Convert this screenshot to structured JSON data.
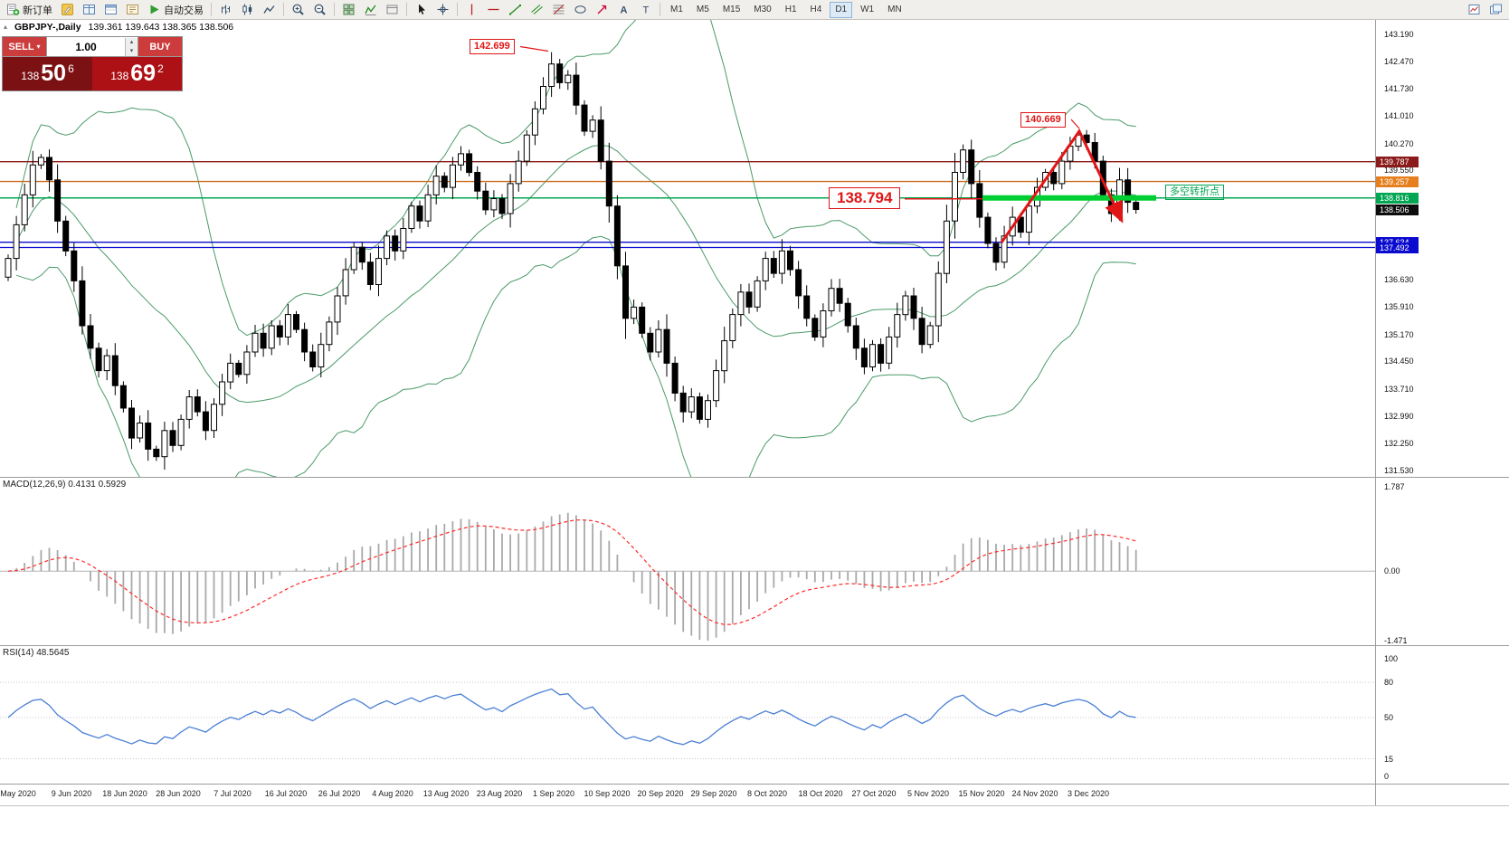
{
  "toolbar": {
    "new_order_label": "新订单",
    "autotrading_label": "自动交易",
    "timeframes": [
      "M1",
      "M5",
      "M15",
      "M30",
      "H1",
      "H4",
      "D1",
      "W1",
      "MN"
    ],
    "active_timeframe": "D1",
    "items": [
      {
        "type": "button",
        "name": "new-order-button",
        "icon": "new-order",
        "label": "新订单"
      },
      {
        "type": "icon",
        "name": "metaeditor-icon",
        "icon": "metaeditor"
      },
      {
        "type": "icon",
        "name": "market-watch-icon",
        "icon": "market-watch"
      },
      {
        "type": "icon",
        "name": "data-window-icon",
        "icon": "data-window"
      },
      {
        "type": "icon",
        "name": "navigator-icon",
        "icon": "navigator"
      },
      {
        "type": "button",
        "name": "autotrading-button",
        "icon": "play",
        "label": "自动交易"
      },
      {
        "type": "sep"
      },
      {
        "type": "icon",
        "name": "bar-chart-icon",
        "icon": "bars"
      },
      {
        "type": "icon",
        "name": "candlestick-chart-icon",
        "icon": "candles"
      },
      {
        "type": "icon",
        "name": "line-chart-icon",
        "icon": "linechart"
      },
      {
        "type": "sep"
      },
      {
        "type": "icon",
        "name": "zoom-in-icon",
        "icon": "zoom-in"
      },
      {
        "type": "icon",
        "name": "zoom-out-icon",
        "icon": "zoom-out"
      },
      {
        "type": "sep"
      },
      {
        "type": "icon",
        "name": "tile-windows-icon",
        "icon": "tile"
      },
      {
        "type": "icon",
        "name": "indicators-icon",
        "icon": "indicators"
      },
      {
        "type": "icon",
        "name": "templates-icon",
        "icon": "templates"
      },
      {
        "type": "sep"
      },
      {
        "type": "icon",
        "name": "cursor-icon",
        "icon": "cursor"
      },
      {
        "type": "icon",
        "name": "crosshair-icon",
        "icon": "crosshair"
      },
      {
        "type": "sep"
      },
      {
        "type": "icon",
        "name": "vertical-line-icon",
        "icon": "vline"
      },
      {
        "type": "icon",
        "name": "horizontal-line-icon",
        "icon": "hline"
      },
      {
        "type": "icon",
        "name": "trendline-icon",
        "icon": "trend"
      },
      {
        "type": "icon",
        "name": "equidistant-channel-icon",
        "icon": "channel"
      },
      {
        "type": "icon",
        "name": "fibonacci-icon",
        "icon": "fibo"
      },
      {
        "type": "icon",
        "name": "shapes-icon",
        "icon": "shapes"
      },
      {
        "type": "icon",
        "name": "arrows-icon",
        "icon": "arrowobj"
      },
      {
        "type": "icon",
        "name": "text-icon",
        "icon": "textA"
      },
      {
        "type": "icon",
        "name": "text-label-icon",
        "icon": "textT"
      },
      {
        "type": "sep"
      },
      {
        "type": "timeframes"
      },
      {
        "type": "spacer"
      },
      {
        "type": "icon",
        "name": "new-chart-icon",
        "icon": "newchart"
      },
      {
        "type": "icon",
        "name": "profile-charts-icon",
        "icon": "chartlist"
      }
    ]
  },
  "quote_header": {
    "symbol_period": "GBPJPY-,Daily",
    "ohlc": "139.361 139.643 138.365 138.506"
  },
  "trade_panel": {
    "sell_label": "SELL",
    "buy_label": "BUY",
    "volume": "1.00",
    "sell_price": {
      "big": "138",
      "mid": "50",
      "sup": "6"
    },
    "buy_price": {
      "big": "138",
      "mid": "69",
      "sup": "2"
    }
  },
  "chart": {
    "axis": {
      "top": 143.19,
      "bottom": 131.53
    },
    "annotations": {
      "high1": "142.699",
      "high2": "140.669",
      "key_level": "138.794",
      "turn_point": "多空转折点"
    },
    "hlines": [
      {
        "price": 139.787,
        "color": "#8b1a1a",
        "w": 1.4
      },
      {
        "price": 139.257,
        "color": "#cc6a1a",
        "w": 1.4
      },
      {
        "price": 138.816,
        "color": "#00a651",
        "w": 1.5
      },
      {
        "price": 137.634,
        "color": "#0b0bcf",
        "w": 1.3
      },
      {
        "price": 137.492,
        "color": "#0b0bcf",
        "w": 1.3
      }
    ],
    "price_tags": [
      {
        "text": "139.787",
        "price": 139.787,
        "bg": "#8b1a1a"
      },
      {
        "text": "139.257",
        "price": 139.257,
        "bg": "#e67f1e"
      },
      {
        "text": "138.816",
        "price": 138.816,
        "bg": "#00a651"
      },
      {
        "text": "138.506",
        "price": 138.506,
        "bg": "#0d0d0d"
      },
      {
        "text": "137.634",
        "price": 137.634,
        "bg": "#0b0bcf"
      },
      {
        "text": "137.492",
        "price": 137.492,
        "bg": "#0b0bcf"
      }
    ],
    "scale_ticks": [
      "143.190",
      "142.470",
      "141.730",
      "141.010",
      "140.270",
      "139.550",
      "136.630",
      "135.910",
      "135.170",
      "134.450",
      "133.710",
      "132.990",
      "132.250",
      "131.530"
    ],
    "colors": {
      "bands": "#4a9a68",
      "arrow": "#e01616",
      "level_bar": "#00cf33",
      "macd_hist": "#a9a9a9",
      "macd_signal": "#ff2a2a",
      "rsi_line": "#4a7fd4"
    }
  },
  "indicators": {
    "macd": {
      "header": "MACD(12,26,9) 0.4131 0.5929",
      "scale": [
        "1.787",
        "0.00",
        "-1.471"
      ],
      "range": {
        "max": 1.787,
        "min": -1.471
      }
    },
    "rsi": {
      "header": "RSI(14) 48.5645",
      "scale": [
        100,
        80,
        50,
        15,
        0
      ],
      "levels": [
        80,
        50,
        15
      ]
    }
  },
  "chart_data": {
    "type": "candlestick",
    "symbol": "GBPJPY-",
    "period": "Daily",
    "y_range": [
      131.53,
      143.19
    ],
    "x_labels": [
      "May 2020",
      "9 Jun 2020",
      "18 Jun 2020",
      "28 Jun 2020",
      "7 Jul 2020",
      "16 Jul 2020",
      "26 Jul 2020",
      "4 Aug 2020",
      "13 Aug 2020",
      "23 Aug 2020",
      "1 Sep 2020",
      "10 Sep 2020",
      "20 Sep 2020",
      "29 Sep 2020",
      "8 Oct 2020",
      "18 Oct 2020",
      "27 Oct 2020",
      "5 Nov 2020",
      "15 Nov 2020",
      "24 Nov 2020",
      "3 Dec 2020"
    ],
    "closes": [
      137.2,
      138.1,
      138.9,
      139.7,
      139.9,
      139.3,
      138.2,
      137.4,
      136.6,
      135.4,
      134.8,
      134.2,
      134.6,
      133.8,
      133.2,
      132.4,
      132.8,
      132.1,
      131.9,
      132.6,
      132.2,
      132.9,
      133.5,
      133.1,
      132.6,
      133.3,
      133.9,
      134.4,
      134.1,
      134.7,
      135.2,
      134.8,
      135.4,
      135.1,
      135.7,
      135.3,
      134.7,
      134.3,
      134.9,
      135.5,
      136.2,
      136.9,
      137.5,
      137.1,
      136.5,
      137.2,
      137.8,
      137.4,
      138.0,
      138.6,
      138.2,
      138.9,
      139.4,
      139.1,
      139.7,
      140.0,
      139.5,
      139.0,
      138.5,
      138.8,
      138.4,
      139.2,
      139.8,
      140.5,
      141.2,
      141.8,
      142.4,
      141.9,
      142.1,
      141.3,
      140.6,
      140.9,
      139.8,
      138.6,
      137.0,
      135.6,
      135.9,
      135.2,
      134.7,
      135.3,
      134.4,
      133.6,
      133.1,
      133.5,
      132.9,
      133.4,
      134.2,
      135.0,
      135.7,
      136.3,
      135.9,
      136.6,
      137.2,
      136.8,
      137.4,
      136.9,
      136.2,
      135.6,
      135.1,
      135.8,
      136.4,
      136.0,
      135.4,
      134.8,
      134.3,
      134.9,
      134.4,
      135.1,
      135.7,
      136.2,
      135.6,
      134.9,
      135.4,
      136.8,
      138.2,
      139.5,
      140.1,
      139.2,
      138.3,
      137.6,
      137.1,
      137.8,
      138.3,
      137.9,
      138.6,
      139.1,
      139.5,
      139.2,
      139.8,
      140.2,
      140.5,
      140.3,
      139.8,
      138.9,
      138.4,
      139.3,
      138.7,
      138.51
    ],
    "overlays": [
      {
        "name": "Bollinger Bands",
        "period": 20,
        "deviation": 2
      }
    ],
    "lower_indicators": [
      {
        "name": "MACD",
        "params": [
          12,
          26,
          9
        ],
        "display_values": "0.4131 0.5929"
      },
      {
        "name": "RSI",
        "params": [
          14
        ],
        "display_value": "48.5645"
      }
    ],
    "marked_levels": [
      142.699,
      140.669,
      138.794,
      139.787,
      139.257,
      138.816,
      137.634,
      137.492
    ]
  }
}
